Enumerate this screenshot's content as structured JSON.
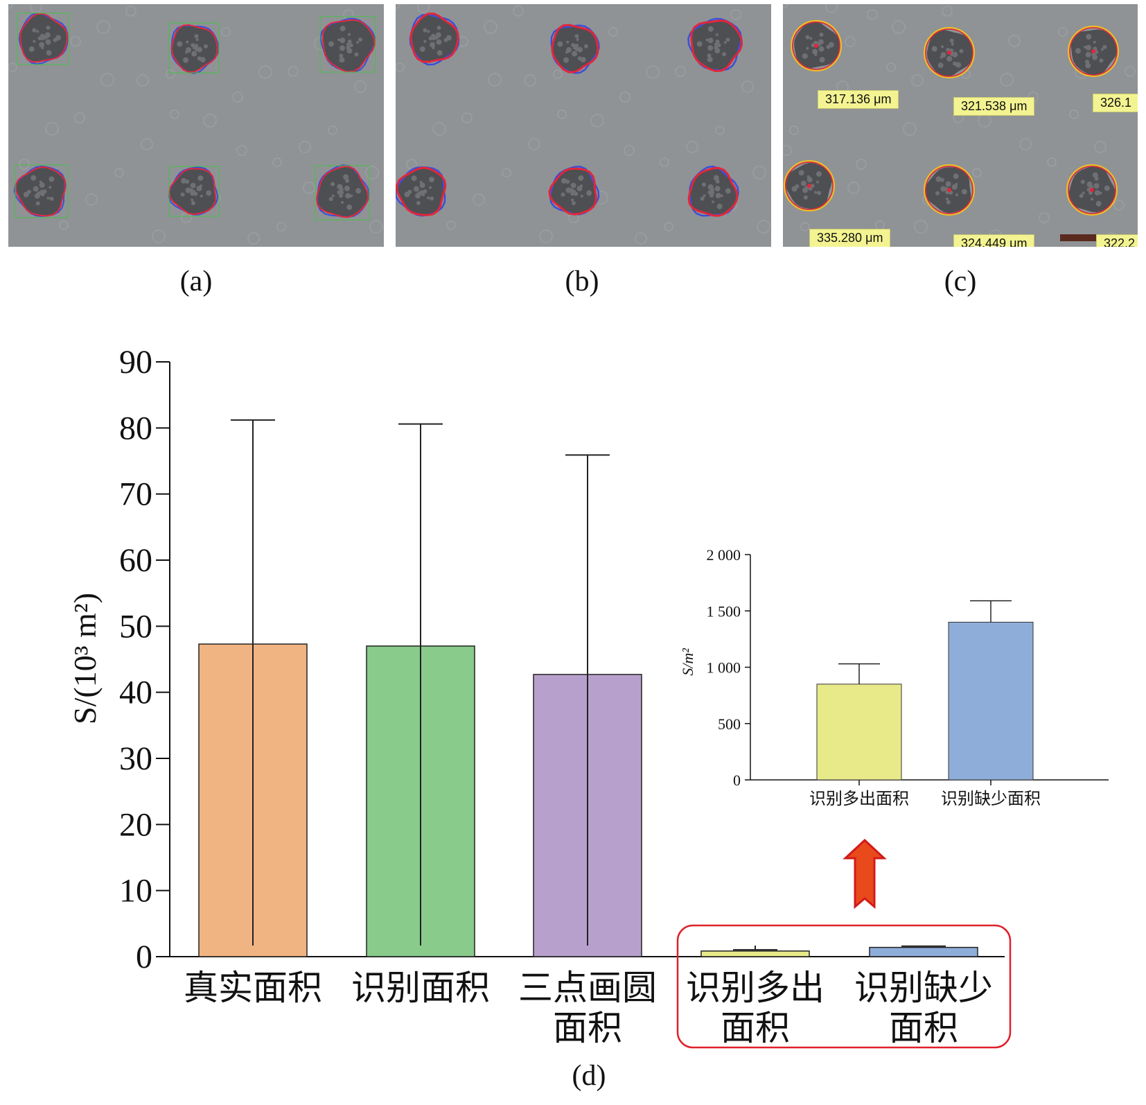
{
  "panels": {
    "a": {
      "caption": "(a)"
    },
    "b": {
      "caption": "(b)"
    },
    "c": {
      "caption": "(c)",
      "measurements": [
        "317.136 μm",
        "321.538 μm",
        "326.1",
        "335.280 μm",
        "324.449 μm",
        "322.2"
      ]
    },
    "d": {
      "caption": "(d)"
    }
  },
  "colors": {
    "bar_true": "#f0b482",
    "bar_identified": "#88cb8a",
    "bar_three_point": "#b7a0cc",
    "bar_extra": "#e8ea8a",
    "bar_missing": "#8eadd9",
    "highlight_box": "#e0202a",
    "arrow": "#e84a1c",
    "contour_red": "#e2263a",
    "contour_blue": "#3a4fd8",
    "box_green": "#44c044",
    "contour_yellow": "#f0c020"
  },
  "chart_data": [
    {
      "type": "bar",
      "ylabel": "S/(10³ m²)",
      "categories": [
        [
          "真实面积"
        ],
        [
          "识别面积"
        ],
        [
          "三点画圆",
          "面积"
        ],
        [
          "识别多出",
          "面积"
        ],
        [
          "识别缺少",
          "面积"
        ]
      ],
      "values": [
        47.3,
        47.0,
        42.7,
        0.85,
        1.4
      ],
      "error_upper": [
        81.2,
        80.6,
        75.9,
        1.03,
        1.59
      ],
      "ylim": [
        0,
        90
      ],
      "yticks": [
        "0",
        "10",
        "20",
        "30",
        "40",
        "50",
        "60",
        "70",
        "80",
        "90"
      ],
      "highlight": "识别多出面积, 识别缺少面积"
    },
    {
      "type": "bar",
      "ylabel": "S/m²",
      "categories": [
        "识别多出面积",
        "识别缺少面积"
      ],
      "values": [
        850,
        1400
      ],
      "error_upper": [
        1030,
        1590
      ],
      "ylim": [
        0,
        2000
      ],
      "yticks": [
        "0",
        "500",
        "1 000",
        "1 500",
        "2 000"
      ]
    }
  ]
}
